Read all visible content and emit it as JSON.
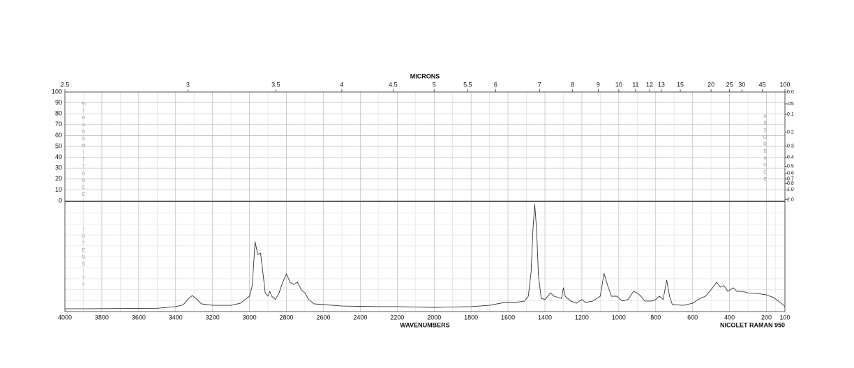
{
  "chart_data": {
    "type": "line",
    "top_axis_label": "MICRONS",
    "x_label": "WAVENUMBERS",
    "instrument": "NICOLET RAMAN 950",
    "left_label": "%TRANSMITTANCE",
    "right_label": "ABSORBANCE",
    "lower_label": "INTENSITY",
    "color": "#333333",
    "grid": true,
    "x": [
      4000,
      3500,
      3400,
      3360,
      3330,
      3310,
      3290,
      3260,
      3200,
      3100,
      3050,
      3000,
      2985,
      2970,
      2955,
      2940,
      2930,
      2915,
      2900,
      2890,
      2880,
      2860,
      2840,
      2820,
      2800,
      2780,
      2760,
      2740,
      2720,
      2700,
      2680,
      2650,
      2600,
      2500,
      2300,
      2200,
      2000,
      1800,
      1700,
      1620,
      1560,
      1510,
      1490,
      1475,
      1465,
      1455,
      1445,
      1435,
      1420,
      1400,
      1370,
      1350,
      1310,
      1300,
      1290,
      1260,
      1230,
      1200,
      1180,
      1140,
      1100,
      1080,
      1060,
      1040,
      1010,
      980,
      950,
      920,
      900,
      880,
      860,
      820,
      800,
      780,
      760,
      740,
      725,
      710,
      650,
      600,
      560,
      530,
      500,
      470,
      450,
      430,
      410,
      380,
      360,
      330,
      300,
      250,
      200,
      160,
      120,
      100
    ],
    "values": [
      2.5,
      3,
      4.5,
      6,
      12,
      14.6,
      12,
      7,
      5.7,
      5.7,
      7.6,
      14,
      23.6,
      63.7,
      52,
      53.5,
      39.5,
      17,
      14,
      18.5,
      14,
      11,
      17,
      26.8,
      34.4,
      26.8,
      24.8,
      26.8,
      20,
      17,
      11,
      7,
      6.4,
      5,
      4.5,
      4.5,
      3.8,
      4.5,
      5.7,
      8.3,
      8.3,
      9.6,
      14,
      36,
      74.5,
      98,
      74.5,
      33,
      12,
      11,
      17,
      14,
      12,
      21.7,
      14,
      9.6,
      7.6,
      11,
      8.3,
      9.6,
      14,
      35,
      23.6,
      14,
      14,
      9.6,
      11,
      18.5,
      17,
      14,
      9.6,
      9.6,
      11,
      14,
      11,
      28.7,
      14,
      6.4,
      5.7,
      7.6,
      12,
      14,
      20,
      26.8,
      22.3,
      23.6,
      18.5,
      21.7,
      18.5,
      18.5,
      17,
      16.5,
      15.3,
      12.7,
      7.6,
      4.5
    ],
    "xlim": [
      4000,
      100
    ],
    "xticks": [
      4000,
      3800,
      3600,
      3400,
      3200,
      3000,
      2800,
      2600,
      2400,
      2200,
      2000,
      1800,
      1600,
      1400,
      1200,
      1000,
      800,
      600,
      400,
      200,
      100
    ],
    "micron_ticks": [
      2.5,
      3,
      3.5,
      4,
      4.5,
      5,
      5.5,
      6,
      7,
      8,
      9,
      10,
      11,
      12,
      13,
      15,
      20,
      25,
      30,
      45,
      100
    ],
    "transmittance_lim": [
      0,
      100
    ],
    "transmittance_ticks": [
      0,
      10,
      20,
      30,
      40,
      50,
      60,
      70,
      80,
      90,
      100
    ],
    "absorbance_ticks": [
      {
        "value": 0,
        "label": "0.0"
      },
      {
        "value": 0.05,
        "label": ".05"
      },
      0.1,
      0.2,
      0.3,
      0.4,
      0.5,
      0.6,
      0.7,
      0.8,
      {
        "value": 1,
        "label": "1.0"
      },
      {
        "value": 2,
        "label": "2.0"
      }
    ],
    "ylim": [
      0,
      100
    ]
  }
}
